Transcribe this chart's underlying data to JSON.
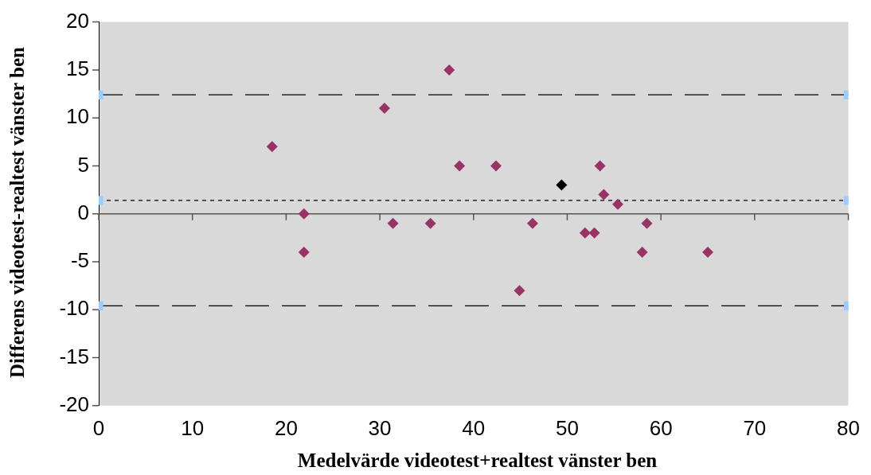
{
  "chart_data": {
    "type": "scatter",
    "xlabel": "Medelvärde videotest+realtest vänster ben",
    "ylabel": "Differens videotest-realtest vänster ben",
    "xlim": [
      0,
      80
    ],
    "xticks": [
      0,
      10,
      20,
      30,
      40,
      50,
      60,
      70,
      80
    ],
    "ylim": [
      -20,
      20
    ],
    "yticks": [
      -20,
      -15,
      -10,
      -5,
      0,
      5,
      10,
      15,
      20
    ],
    "grid": false,
    "legend": false,
    "marker": "diamond",
    "ref_lines": [
      {
        "axis": "y",
        "value": 0,
        "color": "#555555",
        "line_style": "solid"
      }
    ],
    "series": [
      {
        "type": "scatter",
        "color": "#993366",
        "x": [
          18.5,
          21.9,
          21.9,
          30.5,
          31.4,
          35.4,
          37.4,
          38.5,
          42.4,
          44.9,
          46.3,
          51.9,
          52.9,
          53.5,
          53.9,
          55.4,
          58.0,
          58.5,
          65.0
        ],
        "values": [
          7,
          0,
          -4,
          11,
          -1,
          -1,
          15,
          5,
          5,
          -8,
          -1,
          -2,
          -2,
          5,
          2,
          1,
          -4,
          -1,
          -4
        ]
      },
      {
        "type": "scatter",
        "color": "#000000",
        "x": [
          49.4
        ],
        "values": [
          3
        ]
      },
      {
        "type": "line",
        "color": "#000000",
        "marker": "square",
        "line_style": "dashed",
        "x": [
          0,
          80
        ],
        "values": [
          12.4,
          12.4
        ]
      },
      {
        "type": "line",
        "color": "#000000",
        "marker": "square",
        "line_style": "dotted",
        "x": [
          0,
          80
        ],
        "values": [
          1.4,
          1.4
        ]
      },
      {
        "type": "line",
        "color": "#000000",
        "marker": "square",
        "line_style": "dashed",
        "x": [
          0,
          80
        ],
        "values": [
          -9.6,
          -9.6
        ]
      }
    ]
  }
}
